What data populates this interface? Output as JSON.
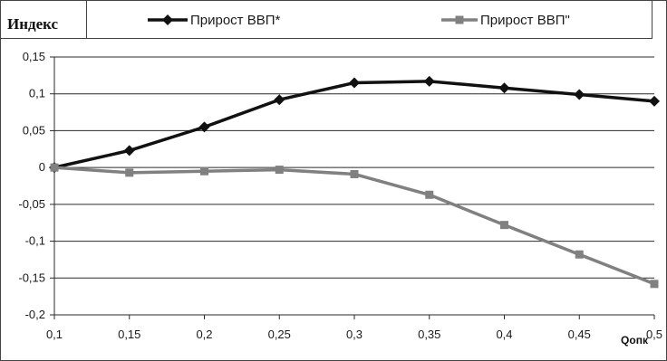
{
  "chart_data": {
    "type": "line",
    "ylabel": "Индекс",
    "xlabel": "Qопк",
    "x": [
      0.1,
      0.15,
      0.2,
      0.25,
      0.3,
      0.35,
      0.4,
      0.45,
      0.5
    ],
    "x_tick_labels": [
      "0,1",
      "0,15",
      "0,2",
      "0,25",
      "0,3",
      "0,35",
      "0,4",
      "0,45",
      "0,5"
    ],
    "y_tick_values": [
      0.15,
      0.1,
      0.05,
      0,
      -0.05,
      -0.1,
      -0.15,
      -0.2
    ],
    "y_tick_labels": [
      "0,15",
      "0,1",
      "0,05",
      "0",
      "-0,05",
      "-0,1",
      "-0,15",
      "-0,2"
    ],
    "xlim": [
      0.1,
      0.5
    ],
    "ylim": [
      -0.2,
      0.15
    ],
    "grid": "horizontal",
    "legend_position": "top",
    "series": [
      {
        "name": "Прирост ВВП*",
        "marker": "diamond",
        "color": "#111111",
        "values": [
          0,
          0.023,
          0.055,
          0.092,
          0.115,
          0.117,
          0.108,
          0.099,
          0.09
        ]
      },
      {
        "name": "Прирост ВВП\"",
        "marker": "square",
        "color": "#808080",
        "values": [
          0,
          -0.007,
          -0.005,
          -0.003,
          -0.009,
          -0.037,
          -0.078,
          -0.118,
          -0.158
        ]
      }
    ]
  }
}
